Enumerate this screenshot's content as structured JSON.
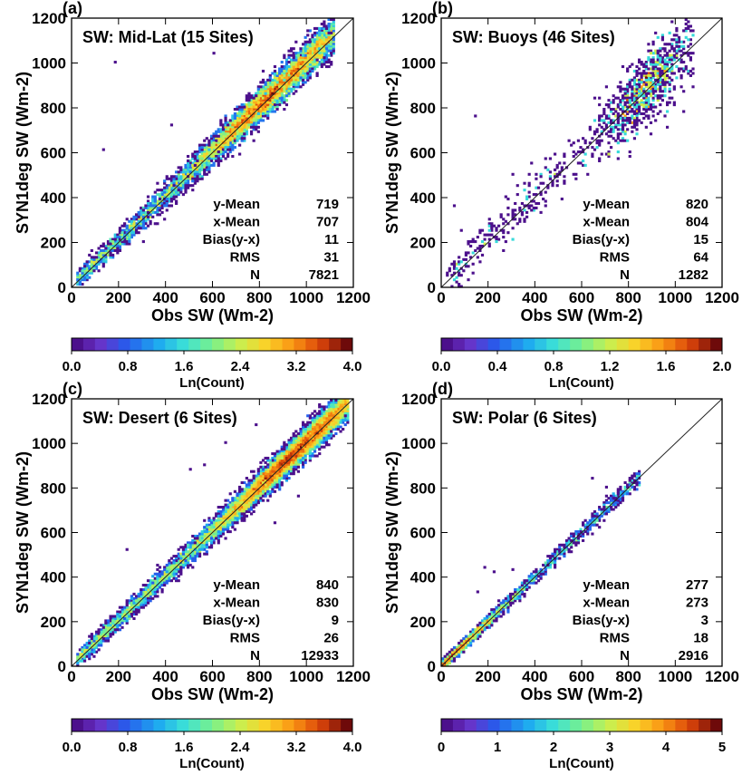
{
  "chart_data": [
    {
      "type": "heatmap",
      "panel_label": "(a)",
      "title": "SW: Mid-Lat (15 Sites)",
      "xlabel": "Obs SW (Wm-2)",
      "ylabel": "SYN1deg SW (Wm-2)",
      "xlim": [
        0,
        1200
      ],
      "ylim": [
        0,
        1200
      ],
      "xticks": [
        0,
        200,
        400,
        600,
        800,
        1000,
        1200
      ],
      "yticks": [
        0,
        200,
        400,
        600,
        800,
        1000,
        1200
      ],
      "one_to_one_line": true,
      "stats": [
        {
          "label": "y-Mean",
          "value": "719"
        },
        {
          "label": "x-Mean",
          "value": "707"
        },
        {
          "label": "Bias(y-x)",
          "value": "11"
        },
        {
          "label": "RMS",
          "value": "31"
        },
        {
          "label": "N",
          "value": "7821"
        }
      ],
      "colorbar": {
        "label": "Ln(Count)",
        "range": [
          0.0,
          4.0
        ],
        "ticks": [
          "0.0",
          "0.8",
          "1.6",
          "2.4",
          "3.2",
          "4.0"
        ]
      },
      "density": {
        "x_range": [
          20,
          1120
        ],
        "bias": 11,
        "spread": 31,
        "peak_x": 860,
        "core_x": [
          400,
          950
        ],
        "peak_ln": 4.0,
        "points": 7821
      },
      "outliers": [
        [
          135,
          612
        ],
        [
          185,
          1008
        ],
        [
          420,
          720
        ],
        [
          600,
          1040
        ],
        [
          700,
          760
        ],
        [
          300,
          200
        ],
        [
          330,
          290
        ]
      ]
    },
    {
      "type": "heatmap",
      "panel_label": "(b)",
      "title": "SW: Buoys (46 Sites)",
      "xlabel": "Obs SW (Wm-2)",
      "ylabel": "SYN1deg SW (Wm-2)",
      "xlim": [
        0,
        1200
      ],
      "ylim": [
        0,
        1200
      ],
      "xticks": [
        0,
        200,
        400,
        600,
        800,
        1000,
        1200
      ],
      "yticks": [
        0,
        200,
        400,
        600,
        800,
        1000,
        1200
      ],
      "one_to_one_line": true,
      "stats": [
        {
          "label": "y-Mean",
          "value": "820"
        },
        {
          "label": "x-Mean",
          "value": "804"
        },
        {
          "label": "Bias(y-x)",
          "value": "15"
        },
        {
          "label": "RMS",
          "value": "64"
        },
        {
          "label": "N",
          "value": "1282"
        }
      ],
      "colorbar": {
        "label": "Ln(Count)",
        "range": [
          0.0,
          2.0
        ],
        "ticks": [
          "0.0",
          "0.4",
          "0.8",
          "1.2",
          "1.6",
          "2.0"
        ]
      },
      "density": {
        "x_range": [
          20,
          1080
        ],
        "bias": 15,
        "spread": 64,
        "peak_x": 880,
        "core_x": [
          750,
          1000
        ],
        "peak_ln": 2.0,
        "points": 1282
      },
      "outliers": [
        [
          140,
          765
        ],
        [
          50,
          365
        ],
        [
          80,
          250
        ],
        [
          300,
          500
        ],
        [
          350,
          460
        ],
        [
          650,
          840
        ]
      ]
    },
    {
      "type": "heatmap",
      "panel_label": "(c)",
      "title": "SW: Desert (6 Sites)",
      "xlabel": "Obs SW (Wm-2)",
      "ylabel": "SYN1deg SW (Wm-2)",
      "xlim": [
        0,
        1200
      ],
      "ylim": [
        0,
        1200
      ],
      "xticks": [
        0,
        200,
        400,
        600,
        800,
        1000,
        1200
      ],
      "yticks": [
        0,
        200,
        400,
        600,
        800,
        1000,
        1200
      ],
      "one_to_one_line": true,
      "stats": [
        {
          "label": "y-Mean",
          "value": "840"
        },
        {
          "label": "x-Mean",
          "value": "830"
        },
        {
          "label": "Bias(y-x)",
          "value": "9"
        },
        {
          "label": "RMS",
          "value": "26"
        },
        {
          "label": "N",
          "value": "12933"
        }
      ],
      "colorbar": {
        "label": "Ln(Count)",
        "range": [
          0.0,
          4.0
        ],
        "ticks": [
          "0.0",
          "0.8",
          "1.6",
          "2.4",
          "3.2",
          "4.0"
        ]
      },
      "density": {
        "x_range": [
          20,
          1180
        ],
        "bias": 9,
        "spread": 26,
        "peak_x": 950,
        "core_x": [
          600,
          1100
        ],
        "peak_ln": 4.0,
        "points": 12933
      },
      "outliers": [
        [
          230,
          520
        ],
        [
          500,
          880
        ],
        [
          560,
          900
        ],
        [
          780,
          1080
        ],
        [
          650,
          1000
        ],
        [
          860,
          640
        ],
        [
          960,
          760
        ]
      ]
    },
    {
      "type": "heatmap",
      "panel_label": "(d)",
      "title": "SW: Polar (6 Sites)",
      "xlabel": "Obs SW (Wm-2)",
      "ylabel": "SYN1deg SW (Wm-2)",
      "xlim": [
        0,
        1200
      ],
      "ylim": [
        0,
        1200
      ],
      "xticks": [
        0,
        200,
        400,
        600,
        800,
        1000,
        1200
      ],
      "yticks": [
        0,
        200,
        400,
        600,
        800,
        1000,
        1200
      ],
      "one_to_one_line": true,
      "stats": [
        {
          "label": "y-Mean",
          "value": "277"
        },
        {
          "label": "x-Mean",
          "value": "273"
        },
        {
          "label": "Bias(y-x)",
          "value": "3"
        },
        {
          "label": "RMS",
          "value": "18"
        },
        {
          "label": "N",
          "value": "2916"
        }
      ],
      "colorbar": {
        "label": "Ln(Count)",
        "range": [
          0,
          5
        ],
        "ticks": [
          "0",
          "1",
          "2",
          "3",
          "4",
          "5"
        ]
      },
      "density": {
        "x_range": [
          0,
          850
        ],
        "bias": 3,
        "spread": 18,
        "peak_x": 30,
        "core_x": [
          0,
          400
        ],
        "peak_ln": 5.0,
        "points": 2916
      },
      "outliers": [
        [
          180,
          440
        ],
        [
          220,
          420
        ],
        [
          300,
          430
        ],
        [
          640,
          840
        ],
        [
          700,
          800
        ],
        [
          150,
          330
        ]
      ]
    }
  ]
}
